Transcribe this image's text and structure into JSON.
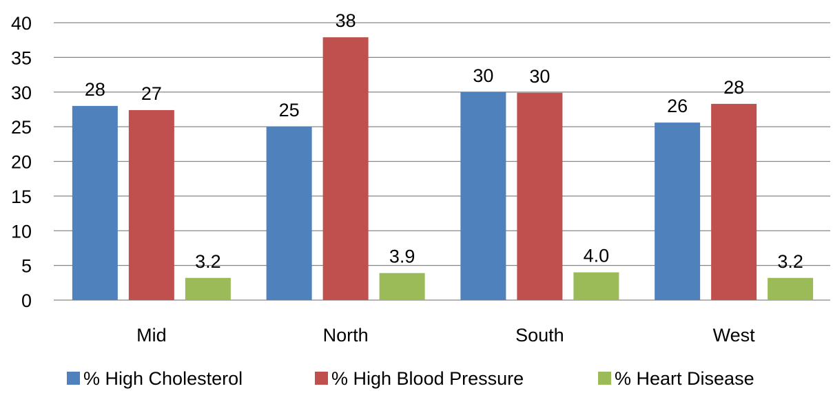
{
  "chart_data": {
    "type": "bar",
    "categories": [
      "Mid",
      "North",
      "South",
      "West"
    ],
    "series": [
      {
        "name": "% High Cholesterol",
        "color": "#4F81BD",
        "values": [
          28,
          25,
          30,
          25.6
        ],
        "labels": [
          "28",
          "25",
          "30",
          "26"
        ]
      },
      {
        "name": "% High Blood Pressure",
        "color": "#C0504D",
        "values": [
          27.4,
          37.9,
          29.9,
          28.3
        ],
        "labels": [
          "27",
          "38",
          "30",
          "28"
        ]
      },
      {
        "name": "% Heart Disease",
        "color": "#9BBB59",
        "values": [
          3.2,
          3.9,
          4.0,
          3.2
        ],
        "labels": [
          "3.2",
          "3.9",
          "4.0",
          "3.2"
        ]
      }
    ],
    "title": "",
    "xlabel": "",
    "ylabel": "",
    "ylim": [
      0,
      40
    ],
    "yticks": [
      0,
      5,
      10,
      15,
      20,
      25,
      30,
      35,
      40
    ],
    "grid": true,
    "legend_position": "bottom"
  }
}
